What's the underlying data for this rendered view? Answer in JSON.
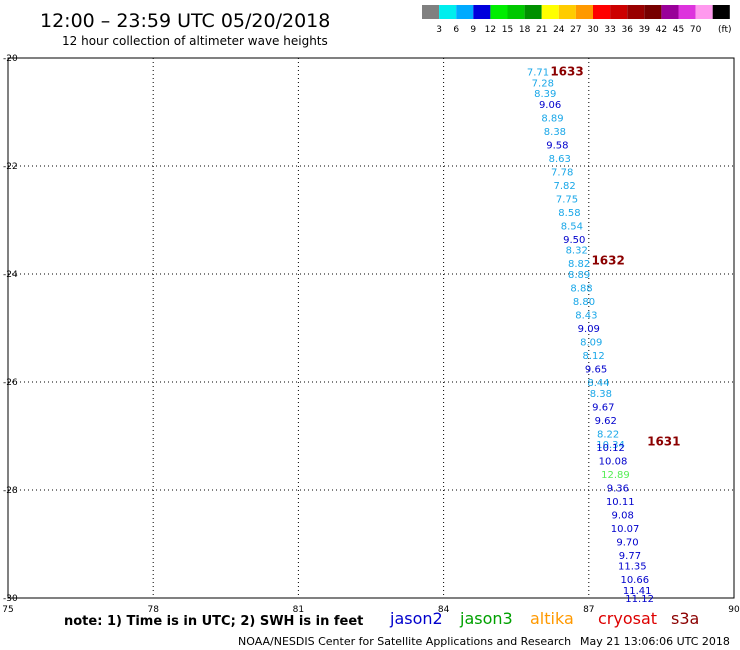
{
  "header": {
    "title": "12:00 – 23:59 UTC 05/20/2018",
    "subtitle": "12 hour collection of altimeter wave heights"
  },
  "colors": {
    "black": "#000000",
    "orbit_label": "#8b0000",
    "jason2": "#0000cc",
    "jason3": "#00a000",
    "altika": "#ff9900",
    "cryosat": "#dd0000",
    "s3a": "#8b0000",
    "light_blue": "#1aa7e8",
    "light_green": "#55ee55"
  },
  "legend_scale": {
    "unit": "(ft)",
    "bins": [
      {
        "label": "",
        "color": "#808080"
      },
      {
        "label": "3",
        "color": "#00eeee"
      },
      {
        "label": "6",
        "color": "#00aaff"
      },
      {
        "label": "9",
        "color": "#0000dd"
      },
      {
        "label": "12",
        "color": "#00ee00"
      },
      {
        "label": "15",
        "color": "#00c800"
      },
      {
        "label": "18",
        "color": "#009000"
      },
      {
        "label": "21",
        "color": "#ffff00"
      },
      {
        "label": "24",
        "color": "#ffcc00"
      },
      {
        "label": "27",
        "color": "#ff9900"
      },
      {
        "label": "30",
        "color": "#ff0000"
      },
      {
        "label": "33",
        "color": "#cc0000"
      },
      {
        "label": "36",
        "color": "#990000"
      },
      {
        "label": "39",
        "color": "#770000"
      },
      {
        "label": "42",
        "color": "#990099"
      },
      {
        "label": "45",
        "color": "#dd33dd"
      },
      {
        "label": "70",
        "color": "#ff99ee"
      },
      {
        "label": "",
        "color": "#000000"
      }
    ]
  },
  "footer": {
    "note": "note: 1) Time is in UTC; 2) SWH is in feet",
    "credit": "NOAA/NESDIS Center for Satellite Applications and Research",
    "timestamp": "May 21 13:06:06 UTC 2018",
    "satellites": [
      {
        "name": "jason2",
        "color": "#0000cc"
      },
      {
        "name": "jason3",
        "color": "#00a000"
      },
      {
        "name": "altika",
        "color": "#ff9900"
      },
      {
        "name": "cryosat",
        "color": "#dd0000"
      },
      {
        "name": "s3a",
        "color": "#8b0000"
      }
    ]
  },
  "chart_data": {
    "type": "scatter",
    "xlim": [
      75,
      90
    ],
    "ylim": [
      -30,
      -20
    ],
    "x_ticks": [
      {
        "value": 75,
        "label": "75"
      },
      {
        "value": 78,
        "label": "78"
      },
      {
        "value": 81,
        "label": "81"
      },
      {
        "value": 84,
        "label": "84"
      },
      {
        "value": 87,
        "label": "87"
      },
      {
        "value": 90,
        "label": "90"
      }
    ],
    "y_ticks": [
      {
        "value": -20,
        "label": "-20"
      },
      {
        "value": -22,
        "label": "-22"
      },
      {
        "value": -24,
        "label": "-24"
      },
      {
        "value": -26,
        "label": "-26"
      },
      {
        "value": -28,
        "label": "-28"
      },
      {
        "value": -30,
        "label": "-30"
      }
    ],
    "grid": true,
    "orbit_labels": [
      {
        "text": "1633",
        "lon": 86.55,
        "lat": -20.25
      },
      {
        "text": "1632",
        "lon": 87.4,
        "lat": -23.75
      },
      {
        "text": "1631",
        "lon": 88.55,
        "lat": -27.1
      }
    ],
    "points": [
      {
        "label": "7.71",
        "lon": 85.95,
        "lat": -20.25,
        "color": "#1aa7e8"
      },
      {
        "label": "7.28",
        "lon": 86.05,
        "lat": -20.45,
        "color": "#1aa7e8"
      },
      {
        "label": "8.39",
        "lon": 86.1,
        "lat": -20.65,
        "color": "#1aa7e8"
      },
      {
        "label": "9.06",
        "lon": 86.2,
        "lat": -20.85,
        "color": "#0000cc"
      },
      {
        "label": "8.89",
        "lon": 86.25,
        "lat": -21.1,
        "color": "#1aa7e8"
      },
      {
        "label": "8.38",
        "lon": 86.3,
        "lat": -21.35,
        "color": "#1aa7e8"
      },
      {
        "label": "9.58",
        "lon": 86.35,
        "lat": -21.6,
        "color": "#0000cc"
      },
      {
        "label": "8.63",
        "lon": 86.4,
        "lat": -21.85,
        "color": "#1aa7e8"
      },
      {
        "label": "7.78",
        "lon": 86.45,
        "lat": -22.1,
        "color": "#1aa7e8"
      },
      {
        "label": "7.82",
        "lon": 86.5,
        "lat": -22.35,
        "color": "#1aa7e8"
      },
      {
        "label": "7.75",
        "lon": 86.55,
        "lat": -22.6,
        "color": "#1aa7e8"
      },
      {
        "label": "8.58",
        "lon": 86.6,
        "lat": -22.85,
        "color": "#1aa7e8"
      },
      {
        "label": "8.54",
        "lon": 86.65,
        "lat": -23.1,
        "color": "#1aa7e8"
      },
      {
        "label": "9.50",
        "lon": 86.7,
        "lat": -23.35,
        "color": "#0000cc"
      },
      {
        "label": "8.32",
        "lon": 86.75,
        "lat": -23.55,
        "color": "#1aa7e8"
      },
      {
        "label": "8.82",
        "lon": 86.8,
        "lat": -23.8,
        "color": "#1aa7e8"
      },
      {
        "label": "8.89",
        "lon": 86.8,
        "lat": -24.0,
        "color": "#1aa7e8"
      },
      {
        "label": "8.88",
        "lon": 86.85,
        "lat": -24.25,
        "color": "#1aa7e8"
      },
      {
        "label": "8.80",
        "lon": 86.9,
        "lat": -24.5,
        "color": "#1aa7e8"
      },
      {
        "label": "8.43",
        "lon": 86.95,
        "lat": -24.75,
        "color": "#1aa7e8"
      },
      {
        "label": "9.09",
        "lon": 87.0,
        "lat": -25.0,
        "color": "#0000cc"
      },
      {
        "label": "8.09",
        "lon": 87.05,
        "lat": -25.25,
        "color": "#1aa7e8"
      },
      {
        "label": "8.12",
        "lon": 87.1,
        "lat": -25.5,
        "color": "#1aa7e8"
      },
      {
        "label": "9.65",
        "lon": 87.15,
        "lat": -25.75,
        "color": "#0000cc"
      },
      {
        "label": "8.44",
        "lon": 87.2,
        "lat": -26.0,
        "color": "#1aa7e8"
      },
      {
        "label": "8.38",
        "lon": 87.25,
        "lat": -26.2,
        "color": "#1aa7e8"
      },
      {
        "label": "9.67",
        "lon": 87.3,
        "lat": -26.45,
        "color": "#0000cc"
      },
      {
        "label": "9.62",
        "lon": 87.35,
        "lat": -26.7,
        "color": "#0000cc"
      },
      {
        "label": "8.22",
        "lon": 87.4,
        "lat": -26.95,
        "color": "#1aa7e8"
      },
      {
        "label": "10.34",
        "lon": 87.45,
        "lat": -27.15,
        "color": "#1aa7e8"
      },
      {
        "label": "10.12",
        "lon": 87.45,
        "lat": -27.2,
        "color": "#0000cc"
      },
      {
        "label": "10.08",
        "lon": 87.5,
        "lat": -27.45,
        "color": "#0000cc"
      },
      {
        "label": "12.89",
        "lon": 87.55,
        "lat": -27.7,
        "color": "#55ee55"
      },
      {
        "label": "9.36",
        "lon": 87.6,
        "lat": -27.95,
        "color": "#0000cc"
      },
      {
        "label": "10.11",
        "lon": 87.65,
        "lat": -28.2,
        "color": "#0000cc"
      },
      {
        "label": "9.08",
        "lon": 87.7,
        "lat": -28.45,
        "color": "#0000cc"
      },
      {
        "label": "10.07",
        "lon": 87.75,
        "lat": -28.7,
        "color": "#0000cc"
      },
      {
        "label": "9.70",
        "lon": 87.8,
        "lat": -28.95,
        "color": "#0000cc"
      },
      {
        "label": "9.77",
        "lon": 87.85,
        "lat": -29.2,
        "color": "#0000cc"
      },
      {
        "label": "11.35",
        "lon": 87.9,
        "lat": -29.4,
        "color": "#0000cc"
      },
      {
        "label": "10.66",
        "lon": 87.95,
        "lat": -29.65,
        "color": "#0000cc"
      },
      {
        "label": "11.41",
        "lon": 88.0,
        "lat": -29.85,
        "color": "#0000cc"
      },
      {
        "label": "11.12",
        "lon": 88.05,
        "lat": -30.0,
        "color": "#0000cc"
      }
    ]
  }
}
